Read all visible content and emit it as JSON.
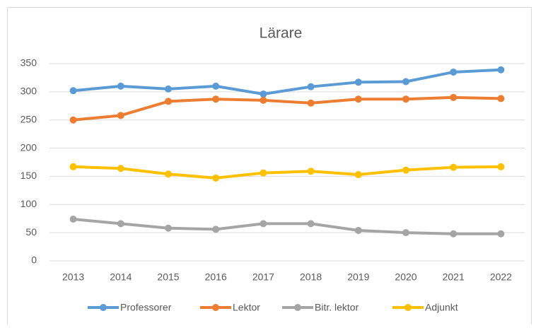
{
  "chart_data": {
    "type": "line",
    "title": "Lärare",
    "categories": [
      "2013",
      "2014",
      "2015",
      "2016",
      "2017",
      "2018",
      "2019",
      "2020",
      "2021",
      "2022"
    ],
    "series": [
      {
        "name": "Professorer",
        "color": "#5b9bd5",
        "values": [
          302,
          310,
          305,
          310,
          296,
          309,
          317,
          318,
          335,
          339
        ]
      },
      {
        "name": "Lektor",
        "color": "#ed7d31",
        "values": [
          250,
          258,
          283,
          287,
          285,
          280,
          287,
          287,
          290,
          288
        ]
      },
      {
        "name": "Bitr. lektor",
        "color": "#a5a5a5",
        "values": [
          74,
          66,
          58,
          56,
          66,
          66,
          54,
          50,
          48,
          48
        ]
      },
      {
        "name": "Adjunkt",
        "color": "#ffc000",
        "values": [
          167,
          164,
          154,
          147,
          156,
          159,
          153,
          161,
          166,
          167
        ]
      }
    ],
    "ylim": [
      0,
      350
    ],
    "yticks": [
      0,
      50,
      100,
      150,
      200,
      250,
      300,
      350
    ],
    "grid": true,
    "legend": "bottom"
  }
}
